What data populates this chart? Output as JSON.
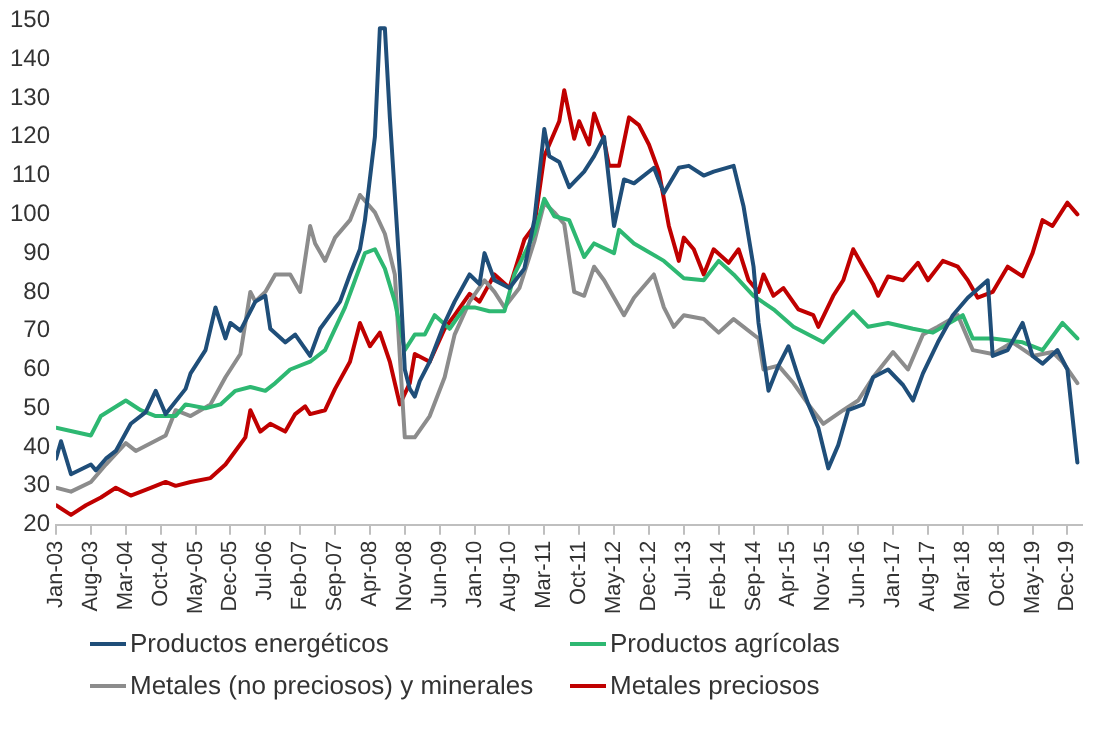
{
  "chart_data": {
    "type": "line",
    "xlim": [
      "2003-01",
      "2020-03"
    ],
    "xticks": [
      {
        "value": "2003-01",
        "label": "Jan-03"
      },
      {
        "value": "2003-08",
        "label": "Aug-03"
      },
      {
        "value": "2004-03",
        "label": "Mar-04"
      },
      {
        "value": "2004-10",
        "label": "Oct-04"
      },
      {
        "value": "2005-05",
        "label": "May-05"
      },
      {
        "value": "2005-12",
        "label": "Dec-05"
      },
      {
        "value": "2006-07",
        "label": "Jul-06"
      },
      {
        "value": "2007-02",
        "label": "Feb-07"
      },
      {
        "value": "2007-09",
        "label": "Sep-07"
      },
      {
        "value": "2008-04",
        "label": "Apr-08"
      },
      {
        "value": "2008-11",
        "label": "Nov-08"
      },
      {
        "value": "2009-06",
        "label": "Jun-09"
      },
      {
        "value": "2010-01",
        "label": "Jan-10"
      },
      {
        "value": "2010-08",
        "label": "Aug-10"
      },
      {
        "value": "2011-03",
        "label": "Mar-11"
      },
      {
        "value": "2011-10",
        "label": "Oct-11"
      },
      {
        "value": "2012-05",
        "label": "May-12"
      },
      {
        "value": "2012-12",
        "label": "Dec-12"
      },
      {
        "value": "2013-07",
        "label": "Jul-13"
      },
      {
        "value": "2014-02",
        "label": "Feb-14"
      },
      {
        "value": "2014-09",
        "label": "Sep-14"
      },
      {
        "value": "2015-04",
        "label": "Apr-15"
      },
      {
        "value": "2015-11",
        "label": "Nov-15"
      },
      {
        "value": "2016-06",
        "label": "Jun-16"
      },
      {
        "value": "2017-01",
        "label": "Jan-17"
      },
      {
        "value": "2017-08",
        "label": "Aug-17"
      },
      {
        "value": "2018-03",
        "label": "Mar-18"
      },
      {
        "value": "2018-10",
        "label": "Oct-18"
      },
      {
        "value": "2019-05",
        "label": "May-19"
      },
      {
        "value": "2019-12",
        "label": "Dec-19"
      }
    ],
    "ylim": [
      20,
      150
    ],
    "yticks": [
      20,
      30,
      40,
      50,
      60,
      70,
      80,
      90,
      100,
      110,
      120,
      130,
      140,
      150
    ],
    "grid": false,
    "legend": "bottom",
    "marker": "none",
    "line_style": "solid",
    "series": [
      {
        "name": "Productos energéticos",
        "color": "#1f4e79",
        "x": [
          "2003-01",
          "2003-02",
          "2003-04",
          "2003-08",
          "2003-09",
          "2003-11",
          "2004-01",
          "2004-04",
          "2004-07",
          "2004-09",
          "2004-11",
          "2005-03",
          "2005-04",
          "2005-07",
          "2005-09",
          "2005-11",
          "2005-12",
          "2006-02",
          "2006-05",
          "2006-07",
          "2006-08",
          "2006-11",
          "2007-01",
          "2007-04",
          "2007-06",
          "2007-08",
          "2007-10",
          "2007-12",
          "2008-02",
          "2008-03",
          "2008-05",
          "2008-06",
          "2008-07",
          "2008-08",
          "2008-10",
          "2008-11",
          "2008-12",
          "2009-01",
          "2009-02",
          "2009-04",
          "2009-07",
          "2009-09",
          "2009-12",
          "2010-02",
          "2010-03",
          "2010-05",
          "2010-08",
          "2010-11",
          "2011-01",
          "2011-03",
          "2011-04",
          "2011-06",
          "2011-08",
          "2011-11",
          "2012-01",
          "2012-03",
          "2012-05",
          "2012-07",
          "2012-09",
          "2013-01",
          "2013-03",
          "2013-06",
          "2013-08",
          "2013-11",
          "2014-01",
          "2014-05",
          "2014-07",
          "2014-09",
          "2014-10",
          "2014-12",
          "2015-02",
          "2015-04",
          "2015-06",
          "2015-08",
          "2015-10",
          "2015-12",
          "2016-02",
          "2016-04",
          "2016-07",
          "2016-09",
          "2016-12",
          "2017-03",
          "2017-05",
          "2017-07",
          "2017-10",
          "2018-01",
          "2018-04",
          "2018-08",
          "2018-09",
          "2018-12",
          "2019-03",
          "2019-05",
          "2019-07",
          "2019-10",
          "2019-12",
          "2020-02"
        ],
        "values": [
          37,
          41.5,
          33,
          35.5,
          34,
          37,
          39,
          46,
          49,
          54.5,
          48.5,
          55,
          59,
          65,
          76,
          68,
          72,
          70,
          77.5,
          79,
          70.5,
          67,
          69,
          63.5,
          70.5,
          74,
          77.5,
          84.5,
          91,
          98.5,
          120,
          148,
          148,
          125,
          85,
          60,
          55,
          53,
          57,
          62,
          72,
          77.5,
          84.5,
          82,
          90,
          83,
          81,
          86,
          98.5,
          122,
          115,
          113.5,
          107,
          111,
          115,
          120,
          97,
          109,
          108,
          112,
          105.5,
          112,
          112.5,
          110,
          111,
          112.5,
          102,
          86.5,
          72,
          54.5,
          61,
          66,
          58,
          51,
          45,
          34.5,
          40.5,
          49.5,
          51,
          58,
          60,
          56,
          52,
          59,
          67,
          74,
          78.5,
          83,
          63.5,
          65,
          72,
          63.5,
          61.5,
          65,
          60,
          36
        ]
      },
      {
        "name": "Productos agrícolas",
        "color": "#2eb872",
        "x": [
          "2003-01",
          "2003-08",
          "2003-10",
          "2004-03",
          "2004-06",
          "2004-09",
          "2005-01",
          "2005-03",
          "2005-07",
          "2005-10",
          "2006-01",
          "2006-04",
          "2006-07",
          "2006-09",
          "2006-12",
          "2007-04",
          "2007-07",
          "2007-11",
          "2008-01",
          "2008-03",
          "2008-05",
          "2008-07",
          "2008-09",
          "2008-11",
          "2009-01",
          "2009-03",
          "2009-05",
          "2009-08",
          "2009-11",
          "2010-01",
          "2010-04",
          "2010-07",
          "2010-09",
          "2011-01",
          "2011-03",
          "2011-05",
          "2011-08",
          "2011-11",
          "2012-01",
          "2012-05",
          "2012-06",
          "2012-09",
          "2013-03",
          "2013-07",
          "2013-11",
          "2014-02",
          "2014-05",
          "2014-09",
          "2015-01",
          "2015-05",
          "2015-11",
          "2016-05",
          "2016-08",
          "2016-12",
          "2017-05",
          "2017-09",
          "2018-03",
          "2018-05",
          "2018-09",
          "2019-03",
          "2019-07",
          "2019-11",
          "2020-02"
        ],
        "values": [
          45,
          43,
          48,
          52,
          49.5,
          48,
          48,
          51,
          50,
          51,
          54.5,
          55.5,
          54.5,
          56.5,
          60,
          62,
          65,
          76,
          83,
          90,
          91,
          86,
          77.5,
          65,
          69,
          69,
          74,
          70.5,
          76,
          76,
          75,
          75,
          84.5,
          95,
          104,
          99.5,
          98.5,
          89,
          92.5,
          90,
          96,
          92.5,
          88,
          83.5,
          83,
          88,
          84.5,
          79,
          75.5,
          71,
          67,
          75,
          71,
          72,
          70.5,
          69.5,
          74,
          68,
          68,
          67,
          65,
          72,
          68
        ]
      },
      {
        "name": "Metales (no preciosos) y minerales",
        "color": "#8c8c8c",
        "x": [
          "2003-01",
          "2003-04",
          "2003-08",
          "2003-11",
          "2004-03",
          "2004-05",
          "2004-08",
          "2004-11",
          "2005-01",
          "2005-04",
          "2005-08",
          "2005-11",
          "2006-02",
          "2006-04",
          "2006-05",
          "2006-07",
          "2006-09",
          "2006-12",
          "2007-02",
          "2007-04",
          "2007-05",
          "2007-07",
          "2007-09",
          "2007-12",
          "2008-02",
          "2008-05",
          "2008-07",
          "2008-09",
          "2008-11",
          "2009-01",
          "2009-04",
          "2009-07",
          "2009-09",
          "2009-12",
          "2010-03",
          "2010-05",
          "2010-07",
          "2010-10",
          "2011-01",
          "2011-03",
          "2011-05",
          "2011-07",
          "2011-09",
          "2011-11",
          "2012-01",
          "2012-03",
          "2012-07",
          "2012-09",
          "2013-01",
          "2013-03",
          "2013-05",
          "2013-07",
          "2013-11",
          "2014-02",
          "2014-05",
          "2014-10",
          "2014-11",
          "2015-02",
          "2015-05",
          "2015-08",
          "2015-11",
          "2016-03",
          "2016-06",
          "2016-09",
          "2017-01",
          "2017-04",
          "2017-07",
          "2017-10",
          "2018-02",
          "2018-05",
          "2018-09",
          "2019-01",
          "2019-05",
          "2019-09",
          "2019-11",
          "2020-02"
        ],
        "values": [
          29.5,
          28.5,
          31,
          35.5,
          41,
          39,
          41,
          43,
          49.5,
          48,
          51,
          58,
          64,
          80,
          77.5,
          80,
          84.5,
          84.5,
          80,
          97,
          92.5,
          88,
          94,
          98.5,
          105,
          100.5,
          95,
          84.5,
          42.5,
          42.5,
          48,
          58,
          69,
          77.5,
          83,
          80,
          76,
          81,
          93,
          103,
          100.5,
          97.5,
          80,
          79,
          86.5,
          83,
          74,
          78.5,
          84.5,
          76,
          71,
          74,
          73,
          69.5,
          73,
          68,
          60,
          61,
          56.5,
          51,
          46,
          49.5,
          52,
          58,
          64.5,
          60,
          69,
          71,
          74,
          65,
          64,
          67,
          63.5,
          64.5,
          62,
          56.5
        ]
      },
      {
        "name": "Metales preciosos",
        "color": "#c00000",
        "x": [
          "2003-01",
          "2003-04",
          "2003-07",
          "2003-10",
          "2004-01",
          "2004-04",
          "2004-08",
          "2004-11",
          "2005-01",
          "2005-04",
          "2005-08",
          "2005-11",
          "2006-01",
          "2006-03",
          "2006-04",
          "2006-06",
          "2006-08",
          "2006-11",
          "2007-01",
          "2007-03",
          "2007-04",
          "2007-07",
          "2007-09",
          "2007-12",
          "2008-02",
          "2008-04",
          "2008-06",
          "2008-08",
          "2008-10",
          "2008-12",
          "2009-01",
          "2009-04",
          "2009-07",
          "2009-09",
          "2009-12",
          "2010-02",
          "2010-05",
          "2010-08",
          "2010-11",
          "2011-01",
          "2011-03",
          "2011-04",
          "2011-06",
          "2011-07",
          "2011-09",
          "2011-10",
          "2011-12",
          "2012-01",
          "2012-03",
          "2012-04",
          "2012-06",
          "2012-08",
          "2012-10",
          "2012-12",
          "2013-02",
          "2013-04",
          "2013-06",
          "2013-07",
          "2013-09",
          "2013-11",
          "2014-01",
          "2014-04",
          "2014-06",
          "2014-08",
          "2014-10",
          "2014-11",
          "2015-01",
          "2015-03",
          "2015-06",
          "2015-09",
          "2015-10",
          "2016-01",
          "2016-03",
          "2016-05",
          "2016-07",
          "2016-09",
          "2016-10",
          "2016-12",
          "2017-03",
          "2017-06",
          "2017-08",
          "2017-11",
          "2018-02",
          "2018-04",
          "2018-06",
          "2018-09",
          "2018-12",
          "2019-03",
          "2019-05",
          "2019-07",
          "2019-09",
          "2019-12",
          "2020-02"
        ],
        "values": [
          25,
          22.5,
          25,
          27,
          29.5,
          27.5,
          29.5,
          31,
          30,
          31,
          32,
          35.5,
          39,
          42.5,
          49.5,
          44,
          46,
          44,
          48.5,
          50.5,
          48.5,
          49.5,
          55,
          62,
          72,
          66,
          69.5,
          62,
          51,
          56.5,
          64,
          62,
          70.5,
          74,
          79.5,
          77.5,
          84.5,
          81,
          93.5,
          97,
          115,
          118,
          124,
          132,
          119.5,
          124,
          118,
          126,
          119,
          112.5,
          112.5,
          125,
          123,
          118,
          111,
          97,
          88,
          94,
          91,
          84.5,
          91,
          87.5,
          91,
          83,
          80,
          84.5,
          79,
          81,
          75.5,
          74,
          71,
          79,
          83,
          91,
          86.5,
          82,
          79,
          84,
          83,
          87.5,
          83,
          88,
          86.5,
          83,
          78.5,
          80,
          86.5,
          84,
          90,
          98.5,
          97,
          103,
          100
        ]
      }
    ]
  }
}
